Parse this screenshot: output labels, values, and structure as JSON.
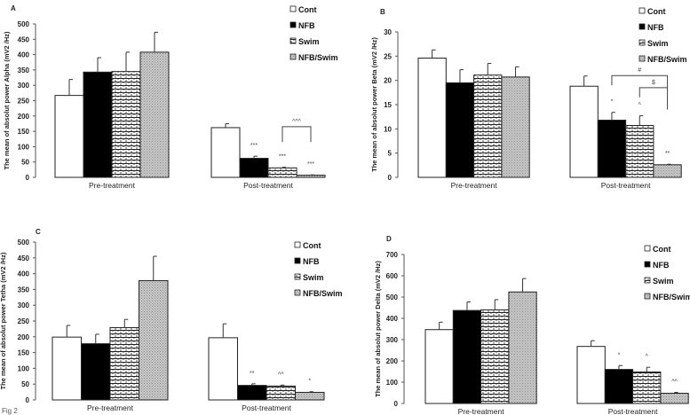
{
  "figure_label": "Fig 2",
  "chart_data": [
    {
      "type": "bar",
      "panel": "A",
      "ylabel": "The mean of absolut power Alpha (mV2 /Hz)",
      "ylim": [
        0,
        500
      ],
      "yticks": [
        0,
        50,
        100,
        150,
        200,
        250,
        300,
        350,
        400,
        450,
        500
      ],
      "categories": [
        "Pre-treatment",
        "Post-treatment"
      ],
      "series": [
        {
          "name": "Cont",
          "values": [
            267,
            162
          ],
          "errors": [
            52,
            13
          ]
        },
        {
          "name": "NFB",
          "values": [
            343,
            62
          ],
          "errors": [
            47,
            7
          ]
        },
        {
          "name": "Swim",
          "values": [
            345,
            31
          ],
          "errors": [
            63,
            2
          ]
        },
        {
          "name": "NFB/Swim",
          "values": [
            408,
            7
          ],
          "errors": [
            65,
            1
          ]
        }
      ],
      "annotations": [
        {
          "text": "***",
          "category": 1,
          "series": 1
        },
        {
          "text": "***",
          "category": 1,
          "series": 2
        },
        {
          "text": "***",
          "category": 1,
          "series": 3
        }
      ],
      "brackets": [
        {
          "text": "^^^",
          "category": 1,
          "from": 2,
          "to": 3,
          "top": 165,
          "left_end": 115,
          "right_end": 115
        }
      ],
      "legend": "top-right"
    },
    {
      "type": "bar",
      "panel": "B",
      "ylabel": "The mean of absolut power Beta (mV2 /Hz)",
      "ylim": [
        0,
        30
      ],
      "yticks": [
        0,
        5,
        10,
        15,
        20,
        25,
        30
      ],
      "categories": [
        "Pre-treatment",
        "Post-treatment"
      ],
      "series": [
        {
          "name": "Cont",
          "values": [
            24.6,
            18.8
          ],
          "errors": [
            1.7,
            2.1
          ]
        },
        {
          "name": "NFB",
          "values": [
            19.5,
            11.8
          ],
          "errors": [
            2.7,
            1.6
          ]
        },
        {
          "name": "Swim",
          "values": [
            21.1,
            10.7
          ],
          "errors": [
            2.4,
            2.0
          ]
        },
        {
          "name": "NFB/Swim",
          "values": [
            20.7,
            2.6
          ],
          "errors": [
            2.1,
            0.1
          ]
        }
      ],
      "annotations": [
        {
          "text": "*",
          "category": 1,
          "series": 1
        },
        {
          "text": "^",
          "category": 1,
          "series": 2
        },
        {
          "text": "**",
          "category": 1,
          "series": 3
        }
      ],
      "brackets": [
        {
          "text": "#",
          "category": 1,
          "from": 1,
          "to": 3,
          "top": 21,
          "left_end": 19,
          "right_end": 14
        },
        {
          "text": "$",
          "category": 1,
          "from": 2,
          "to": 3,
          "top": 18.5,
          "left_end": 16.5,
          "right_end": 18.5
        }
      ],
      "legend": "top-right"
    },
    {
      "type": "bar",
      "panel": "C",
      "ylabel": "The mean of absolut power Tetha (mV2 /Hz)",
      "ylim": [
        0,
        500
      ],
      "yticks": [
        0,
        50,
        100,
        150,
        200,
        250,
        300,
        350,
        400,
        450,
        500
      ],
      "categories": [
        "Pre-treatment",
        "Post-treatment"
      ],
      "series": [
        {
          "name": "Cont",
          "values": [
            199,
            197
          ],
          "errors": [
            37,
            44
          ]
        },
        {
          "name": "NFB",
          "values": [
            178,
            46
          ],
          "errors": [
            30,
            5
          ]
        },
        {
          "name": "Swim",
          "values": [
            229,
            44
          ],
          "errors": [
            26,
            3
          ]
        },
        {
          "name": "NFB/Swim",
          "values": [
            378,
            24
          ],
          "errors": [
            77,
            2
          ]
        }
      ],
      "annotations": [
        {
          "text": "**",
          "category": 1,
          "series": 1
        },
        {
          "text": "^^",
          "category": 1,
          "series": 2
        },
        {
          "text": "*",
          "category": 1,
          "series": 3
        }
      ],
      "brackets": [],
      "legend": "top-right"
    },
    {
      "type": "bar",
      "panel": "D",
      "ylabel": "The mean of absolut power Delta (mV2 /Hz)",
      "ylim": [
        0,
        700
      ],
      "yticks": [
        0,
        100,
        200,
        300,
        400,
        500,
        600,
        700
      ],
      "categories": [
        "Pre-treatment",
        "Post-treatment"
      ],
      "series": [
        {
          "name": "Cont",
          "values": [
            347,
            268
          ],
          "errors": [
            35,
            27
          ]
        },
        {
          "name": "NFB",
          "values": [
            437,
            160
          ],
          "errors": [
            40,
            18
          ]
        },
        {
          "name": "Swim",
          "values": [
            440,
            148
          ],
          "errors": [
            48,
            22
          ]
        },
        {
          "name": "NFB/Swim",
          "values": [
            524,
            48
          ],
          "errors": [
            63,
            4
          ]
        }
      ],
      "annotations": [
        {
          "text": "*",
          "category": 1,
          "series": 1
        },
        {
          "text": "^",
          "category": 1,
          "series": 2
        },
        {
          "text": "^^",
          "category": 1,
          "series": 3
        }
      ],
      "brackets": [],
      "legend": "top-right"
    }
  ]
}
